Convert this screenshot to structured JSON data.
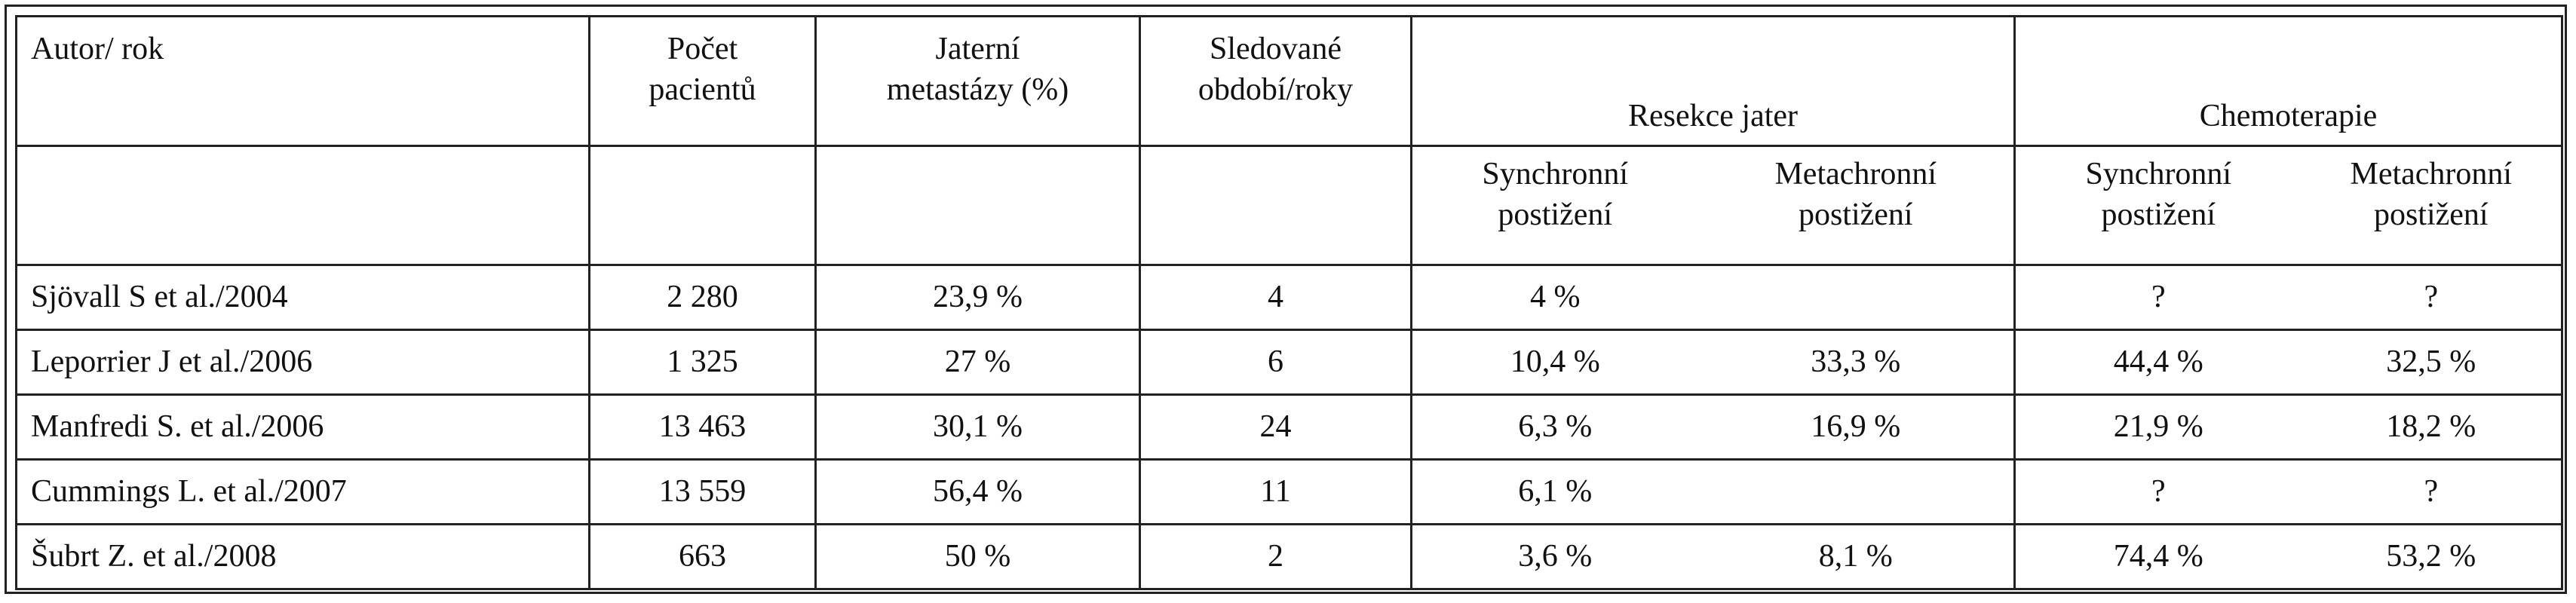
{
  "table": {
    "columns": {
      "author": "Autor/ rok",
      "patients": [
        "Počet",
        "pacientů"
      ],
      "liver_metastases": [
        "Jaterní",
        "metastázy (%)"
      ],
      "followup": [
        "Sledované",
        "období/roky"
      ],
      "resection": "Resekce jater",
      "chemotherapy": "Chemoterapie"
    },
    "subcolumns": {
      "resection_sync": [
        "Synchronní",
        "postižení"
      ],
      "resection_meta": [
        "Metachronní",
        "postižení"
      ],
      "chemo_sync": [
        "Synchronní",
        "postižení"
      ],
      "chemo_meta": [
        "Metachronní",
        "postižení"
      ]
    },
    "rows": [
      {
        "author": "Sjövall S et al./2004",
        "patients": "2 280",
        "liver": "23,9 %",
        "followup": "4",
        "res_sync": "4 %",
        "res_meta": "",
        "chemo_sync": "?",
        "chemo_meta": "?"
      },
      {
        "author": "Leporrier J et al./2006",
        "patients": "1 325",
        "liver": "27 %",
        "followup": "6",
        "res_sync": "10,4 %",
        "res_meta": "33,3 %",
        "chemo_sync": "44,4 %",
        "chemo_meta": "32,5 %"
      },
      {
        "author": "Manfredi S. et al./2006",
        "patients": "13 463",
        "liver": "30,1 %",
        "followup": "24",
        "res_sync": "6,3 %",
        "res_meta": "16,9 %",
        "chemo_sync": "21,9 %",
        "chemo_meta": "18,2 %"
      },
      {
        "author": "Cummings L. et al./2007",
        "patients": "13 559",
        "liver": "56,4 %",
        "followup": "11",
        "res_sync": "6,1 %",
        "res_meta": "",
        "chemo_sync": "?",
        "chemo_meta": "?"
      },
      {
        "author": "Šubrt Z. et al./2008",
        "patients": "663",
        "liver": "50 %",
        "followup": "2",
        "res_sync": "3,6 %",
        "res_meta": "8,1 %",
        "chemo_sync": "74,4 %",
        "chemo_meta": "53,2 %"
      }
    ]
  }
}
